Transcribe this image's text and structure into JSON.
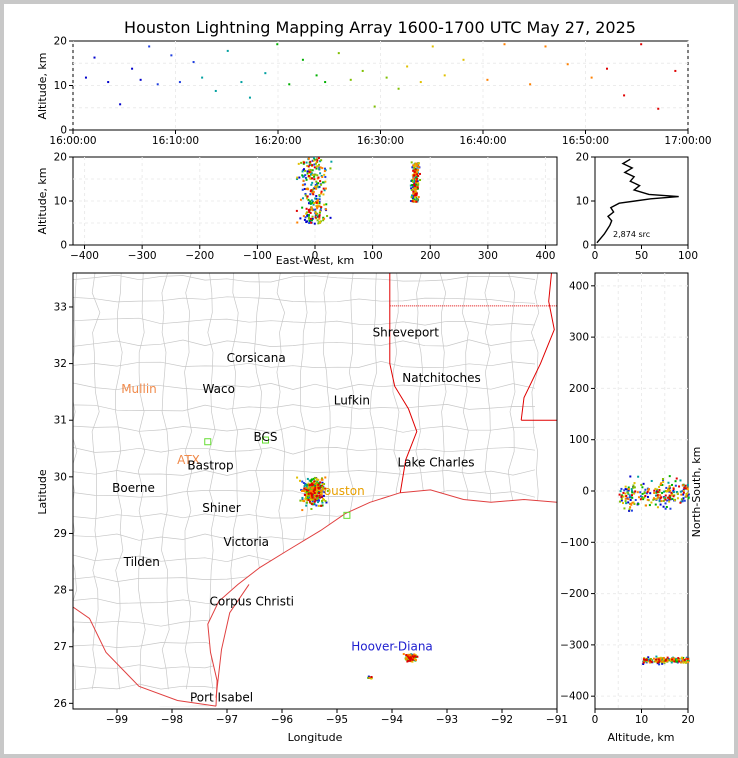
{
  "chart_data": {
    "type": "scatter",
    "title": "Houston Lightning Mapping Array 1600-1700 UTC May 27, 2025",
    "panels": {
      "time_height": {
        "ylabel": "Altitude, km",
        "xlim": [
          "16:00:00",
          "17:00:00"
        ],
        "xticks": [
          "16:00:00",
          "16:10:00",
          "16:20:00",
          "16:30:00",
          "16:40:00",
          "16:50:00",
          "17:00:00"
        ],
        "ylim": [
          0,
          20
        ],
        "yticks": [
          "0",
          "10",
          "20"
        ],
        "sources": [
          {
            "t": "16:01:10",
            "alt": 12.0
          },
          {
            "t": "16:02:00",
            "alt": 16.5
          },
          {
            "t": "16:03:20",
            "alt": 11.0
          },
          {
            "t": "16:04:30",
            "alt": 6.0
          },
          {
            "t": "16:05:40",
            "alt": 14.0
          },
          {
            "t": "16:06:30",
            "alt": 11.5
          },
          {
            "t": "16:07:20",
            "alt": 19.0
          },
          {
            "t": "16:08:10",
            "alt": 10.5
          },
          {
            "t": "16:09:30",
            "alt": 17.0
          },
          {
            "t": "16:10:20",
            "alt": 11.0
          },
          {
            "t": "16:11:40",
            "alt": 15.5
          },
          {
            "t": "16:12:30",
            "alt": 12.0
          },
          {
            "t": "16:13:50",
            "alt": 9.0
          },
          {
            "t": "16:15:00",
            "alt": 18.0
          },
          {
            "t": "16:16:20",
            "alt": 11.0
          },
          {
            "t": "16:17:10",
            "alt": 7.5
          },
          {
            "t": "16:18:40",
            "alt": 13.0
          },
          {
            "t": "16:19:50",
            "alt": 19.5
          },
          {
            "t": "16:21:00",
            "alt": 10.5
          },
          {
            "t": "16:22:20",
            "alt": 16.0
          },
          {
            "t": "16:23:40",
            "alt": 12.5
          },
          {
            "t": "16:24:30",
            "alt": 11.0
          },
          {
            "t": "16:25:50",
            "alt": 17.5
          },
          {
            "t": "16:27:00",
            "alt": 11.5
          },
          {
            "t": "16:28:10",
            "alt": 13.5
          },
          {
            "t": "16:29:20",
            "alt": 5.5
          },
          {
            "t": "16:30:30",
            "alt": 12.0
          },
          {
            "t": "16:31:40",
            "alt": 9.5
          },
          {
            "t": "16:32:30",
            "alt": 14.5
          },
          {
            "t": "16:33:50",
            "alt": 11.0
          },
          {
            "t": "16:35:00",
            "alt": 19.0
          },
          {
            "t": "16:36:10",
            "alt": 12.5
          },
          {
            "t": "16:38:00",
            "alt": 16.0
          },
          {
            "t": "16:40:20",
            "alt": 11.5
          },
          {
            "t": "16:42:00",
            "alt": 19.5
          },
          {
            "t": "16:44:30",
            "alt": 10.5
          },
          {
            "t": "16:46:00",
            "alt": 19.0
          },
          {
            "t": "16:48:10",
            "alt": 15.0
          },
          {
            "t": "16:50:30",
            "alt": 12.0
          },
          {
            "t": "16:52:00",
            "alt": 14.0
          },
          {
            "t": "16:53:40",
            "alt": 8.0
          },
          {
            "t": "16:55:20",
            "alt": 19.5
          },
          {
            "t": "16:57:00",
            "alt": 5.0
          },
          {
            "t": "16:58:40",
            "alt": 13.5
          }
        ]
      },
      "ew_height": {
        "xlabel": "East-West, km",
        "ylabel": "Altitude, km",
        "xlim": [
          -420,
          420
        ],
        "xticks": [
          "−400",
          "−300",
          "−200",
          "−100",
          "0",
          "100",
          "200",
          "300",
          "400"
        ],
        "ylim": [
          0,
          20
        ],
        "yticks": [
          "0",
          "10",
          "20"
        ],
        "clusters": [
          {
            "x_center": -5,
            "x_spread": 35,
            "alt_min": 5,
            "alt_max": 20,
            "count": 260
          },
          {
            "x_center": 172,
            "x_spread": 10,
            "alt_min": 10,
            "alt_max": 19,
            "count": 180
          }
        ]
      },
      "altitude_histogram": {
        "xlim": [
          0,
          100
        ],
        "xticks": [
          "0",
          "50",
          "100"
        ],
        "ylim": [
          0,
          20
        ],
        "yticks": [
          "0",
          "10",
          "20"
        ],
        "annotation": "2,874 src",
        "profile": [
          {
            "alt": 0.5,
            "count": 2
          },
          {
            "alt": 1.5,
            "count": 6
          },
          {
            "alt": 2.5,
            "count": 10
          },
          {
            "alt": 3.5,
            "count": 13
          },
          {
            "alt": 4.5,
            "count": 16
          },
          {
            "alt": 5.5,
            "count": 18
          },
          {
            "alt": 6.5,
            "count": 14
          },
          {
            "alt": 7.5,
            "count": 20
          },
          {
            "alt": 8.5,
            "count": 17
          },
          {
            "alt": 9.5,
            "count": 26
          },
          {
            "alt": 10.5,
            "count": 60
          },
          {
            "alt": 11.0,
            "count": 90
          },
          {
            "alt": 11.5,
            "count": 58
          },
          {
            "alt": 12.5,
            "count": 42
          },
          {
            "alt": 13.5,
            "count": 48
          },
          {
            "alt": 14.5,
            "count": 38
          },
          {
            "alt": 15.5,
            "count": 42
          },
          {
            "alt": 16.5,
            "count": 32
          },
          {
            "alt": 17.5,
            "count": 40
          },
          {
            "alt": 18.5,
            "count": 30
          },
          {
            "alt": 19.5,
            "count": 38
          }
        ]
      },
      "plan_view": {
        "xlabel": "Longitude",
        "ylabel": "Latitude",
        "xlim": [
          -99.8,
          -91.0
        ],
        "ylim": [
          25.9,
          33.6
        ],
        "xticks": [
          "−99",
          "−98",
          "−97",
          "−96",
          "−95",
          "−94",
          "−93",
          "−92",
          "−91"
        ],
        "yticks": [
          "26",
          "27",
          "28",
          "29",
          "30",
          "31",
          "32",
          "33"
        ],
        "cities": [
          {
            "name": "Shreveport",
            "lon": -93.75,
            "lat": 32.55,
            "color": "#000000"
          },
          {
            "name": "Corsicana",
            "lon": -96.47,
            "lat": 32.1,
            "color": "#000000"
          },
          {
            "name": "Natchitoches",
            "lon": -93.1,
            "lat": 31.75,
            "color": "#000000"
          },
          {
            "name": "Mullin",
            "lon": -98.6,
            "lat": 31.55,
            "color": "#f08a4b"
          },
          {
            "name": "Waco",
            "lon": -97.15,
            "lat": 31.55,
            "color": "#000000"
          },
          {
            "name": "Lufkin",
            "lon": -94.73,
            "lat": 31.35,
            "color": "#000000"
          },
          {
            "name": "BCS",
            "lon": -96.3,
            "lat": 30.7,
            "color": "#000000"
          },
          {
            "name": "ATX",
            "lon": -97.7,
            "lat": 30.3,
            "color": "#f08a4b"
          },
          {
            "name": "Lake Charles",
            "lon": -93.2,
            "lat": 30.25,
            "color": "#000000"
          },
          {
            "name": "Bastrop",
            "lon": -97.3,
            "lat": 30.2,
            "color": "#000000"
          },
          {
            "name": "Boerne",
            "lon": -98.7,
            "lat": 29.8,
            "color": "#000000"
          },
          {
            "name": "Houston",
            "lon": -94.95,
            "lat": 29.75,
            "color": "#e8a000"
          },
          {
            "name": "Shiner",
            "lon": -97.1,
            "lat": 29.45,
            "color": "#000000"
          },
          {
            "name": "Victoria",
            "lon": -96.65,
            "lat": 28.85,
            "color": "#000000"
          },
          {
            "name": "Tilden",
            "lon": -98.55,
            "lat": 28.5,
            "color": "#000000"
          },
          {
            "name": "Corpus Christi",
            "lon": -96.55,
            "lat": 27.8,
            "color": "#000000"
          },
          {
            "name": "Hoover-Diana",
            "lon": -94.0,
            "lat": 27.0,
            "color": "#2020d0"
          },
          {
            "name": "Port Isabel",
            "lon": -97.1,
            "lat": 26.1,
            "color": "#000000"
          }
        ],
        "stations": [
          {
            "lon": -97.35,
            "lat": 30.62
          },
          {
            "lon": -96.3,
            "lat": 30.65
          },
          {
            "lon": -94.82,
            "lat": 29.32
          }
        ],
        "clusters": [
          {
            "lon_center": -95.45,
            "lat_center": 29.75,
            "lon_spread": 0.33,
            "lat_spread": 0.35,
            "count": 320
          },
          {
            "lon_center": -93.68,
            "lat_center": 26.82,
            "lon_spread": 0.14,
            "lat_spread": 0.08,
            "count": 130
          },
          {
            "lon_center": -94.42,
            "lat_center": 26.48,
            "lon_spread": 0.05,
            "lat_spread": 0.03,
            "count": 10
          }
        ]
      },
      "ns_height": {
        "xlabel": "Altitude, km",
        "ylabel": "North-South, km",
        "xlim": [
          0,
          20
        ],
        "xticks": [
          "0",
          "10",
          "20"
        ],
        "ylim": [
          -425,
          425
        ],
        "yticks": [
          "−400",
          "−300",
          "−200",
          "−100",
          "0",
          "100",
          "200",
          "300",
          "400"
        ],
        "clusters": [
          {
            "y_center": -5,
            "y_spread": 40,
            "alt_min": 5,
            "alt_max": 20,
            "count": 240
          },
          {
            "y_center": -328,
            "y_spread": 9,
            "alt_min": 10,
            "alt_max": 20,
            "count": 170
          }
        ]
      }
    }
  }
}
